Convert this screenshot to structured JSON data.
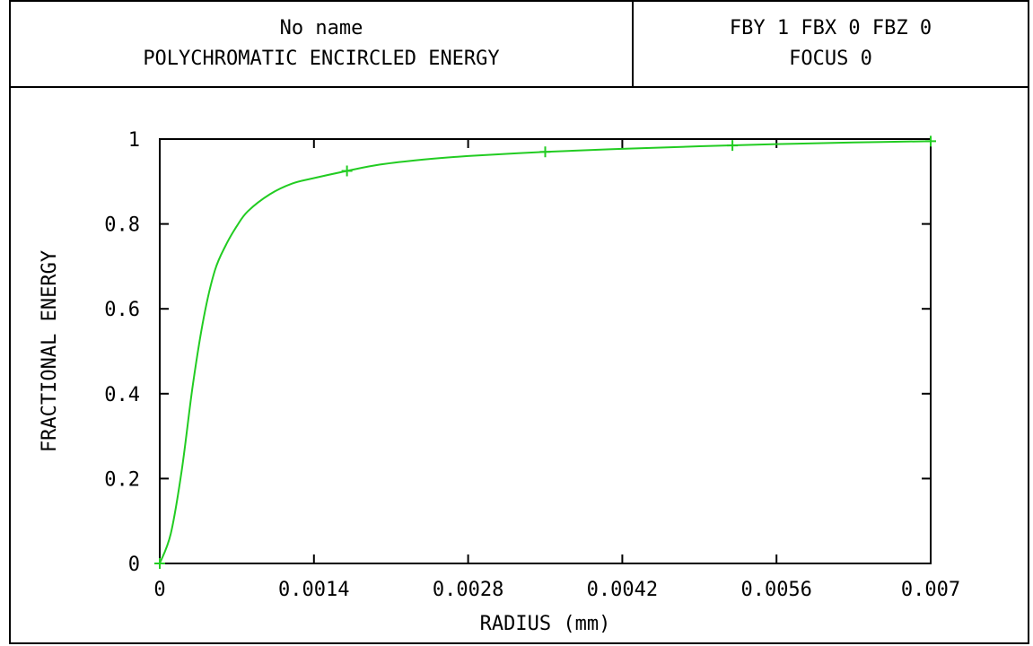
{
  "header": {
    "left_line1": "No name",
    "left_line2": "POLYCHROMATIC ENCIRCLED ENERGY",
    "right_line1": "FBY 1 FBX 0 FBZ 0",
    "right_line2": "FOCUS 0"
  },
  "chart_data": {
    "type": "line",
    "title": "POLYCHROMATIC ENCIRCLED ENERGY",
    "xlabel": "RADIUS (mm)",
    "ylabel": "FRACTIONAL ENERGY",
    "xlim": [
      0,
      0.007
    ],
    "ylim": [
      0,
      1
    ],
    "x_ticks": [
      "0",
      "0.0014",
      "0.0028",
      "0.0042",
      "0.0056",
      "0.007"
    ],
    "y_ticks": [
      "0",
      "0.2",
      "0.4",
      "0.6",
      "0.8",
      "1"
    ],
    "line_color": "#22cc22",
    "series": [
      {
        "x": [
          0,
          0.0001,
          0.0002,
          0.0003,
          0.0004,
          0.0005,
          0.0006,
          0.0007,
          0.0008,
          0.001,
          0.0012,
          0.0014,
          0.0017,
          0.002,
          0.0024,
          0.0028,
          0.0035,
          0.0042,
          0.0049,
          0.0056,
          0.0063,
          0.007
        ],
        "y": [
          0,
          0.07,
          0.22,
          0.42,
          0.58,
          0.69,
          0.75,
          0.795,
          0.83,
          0.87,
          0.895,
          0.908,
          0.925,
          0.94,
          0.952,
          0.96,
          0.97,
          0.977,
          0.983,
          0.988,
          0.992,
          0.995
        ]
      }
    ],
    "markers": {
      "x": [
        0,
        0.0017,
        0.0035,
        0.0052,
        0.007
      ],
      "y": [
        0,
        0.925,
        0.97,
        0.985,
        0.995
      ]
    }
  }
}
